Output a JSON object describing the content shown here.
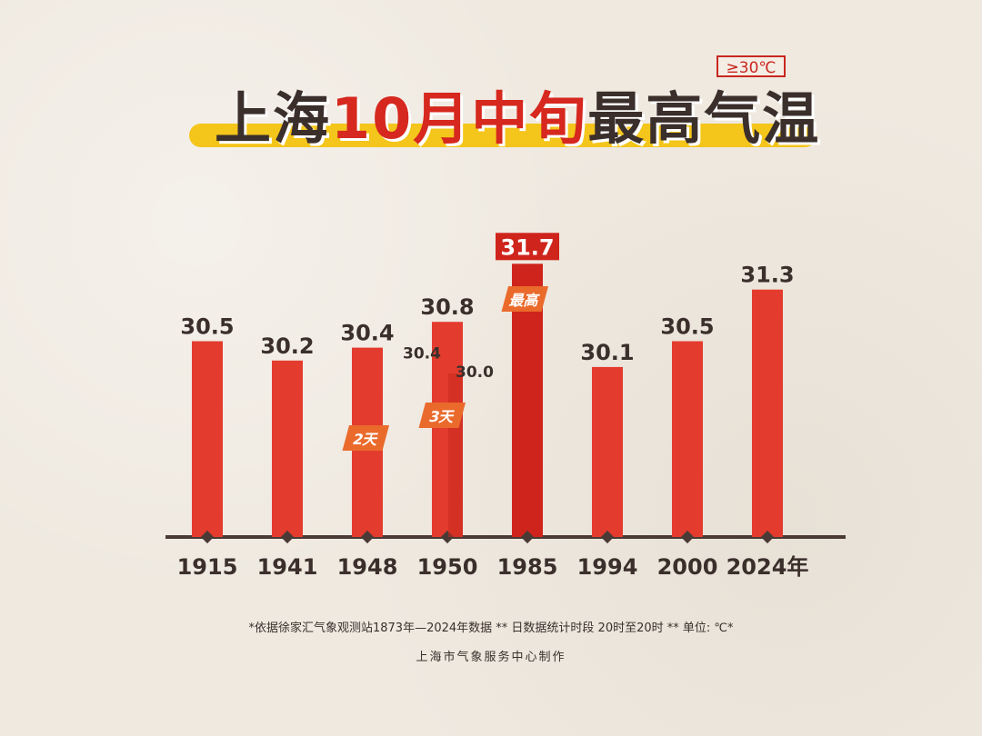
{
  "badge": "≥30℃",
  "title": {
    "part1": "上海",
    "part2": "10月中旬",
    "part3": "最高气温"
  },
  "chart_data": {
    "type": "bar",
    "categories": [
      "1915",
      "1941",
      "1948",
      "1950",
      "1985",
      "1994",
      "2000",
      "2024年"
    ],
    "values": [
      30.5,
      30.2,
      30.4,
      30.8,
      31.7,
      30.1,
      30.5,
      31.3
    ],
    "value_labels": [
      "30.5",
      "30.2",
      "30.4",
      "30.8",
      "31.7",
      "30.1",
      "30.5",
      "31.3"
    ],
    "extra_labels": [
      {
        "category": "1950",
        "text": "30.4"
      },
      {
        "category": "1950",
        "text": "30.0"
      }
    ],
    "tags": [
      {
        "category": "1948",
        "text": "2天"
      },
      {
        "category": "1950",
        "text": "3天"
      },
      {
        "category": "1985",
        "text": "最高"
      }
    ],
    "highlight": "1985",
    "ylim": [
      28,
      32
    ],
    "colors": {
      "bar": "#e33c2e",
      "bar_dark": "#c9261d",
      "highlight": "#cf241c",
      "axis": "#4a3a35",
      "label": "#3b2f2c",
      "tag": "#ea6a2c"
    }
  },
  "notes": {
    "source": "*依据徐家汇气象观测站1873年—2024年数据 ** 日数据统计时段 20时至20时 ** 单位: ℃*",
    "credit": "上海市气象服务中心制作"
  }
}
